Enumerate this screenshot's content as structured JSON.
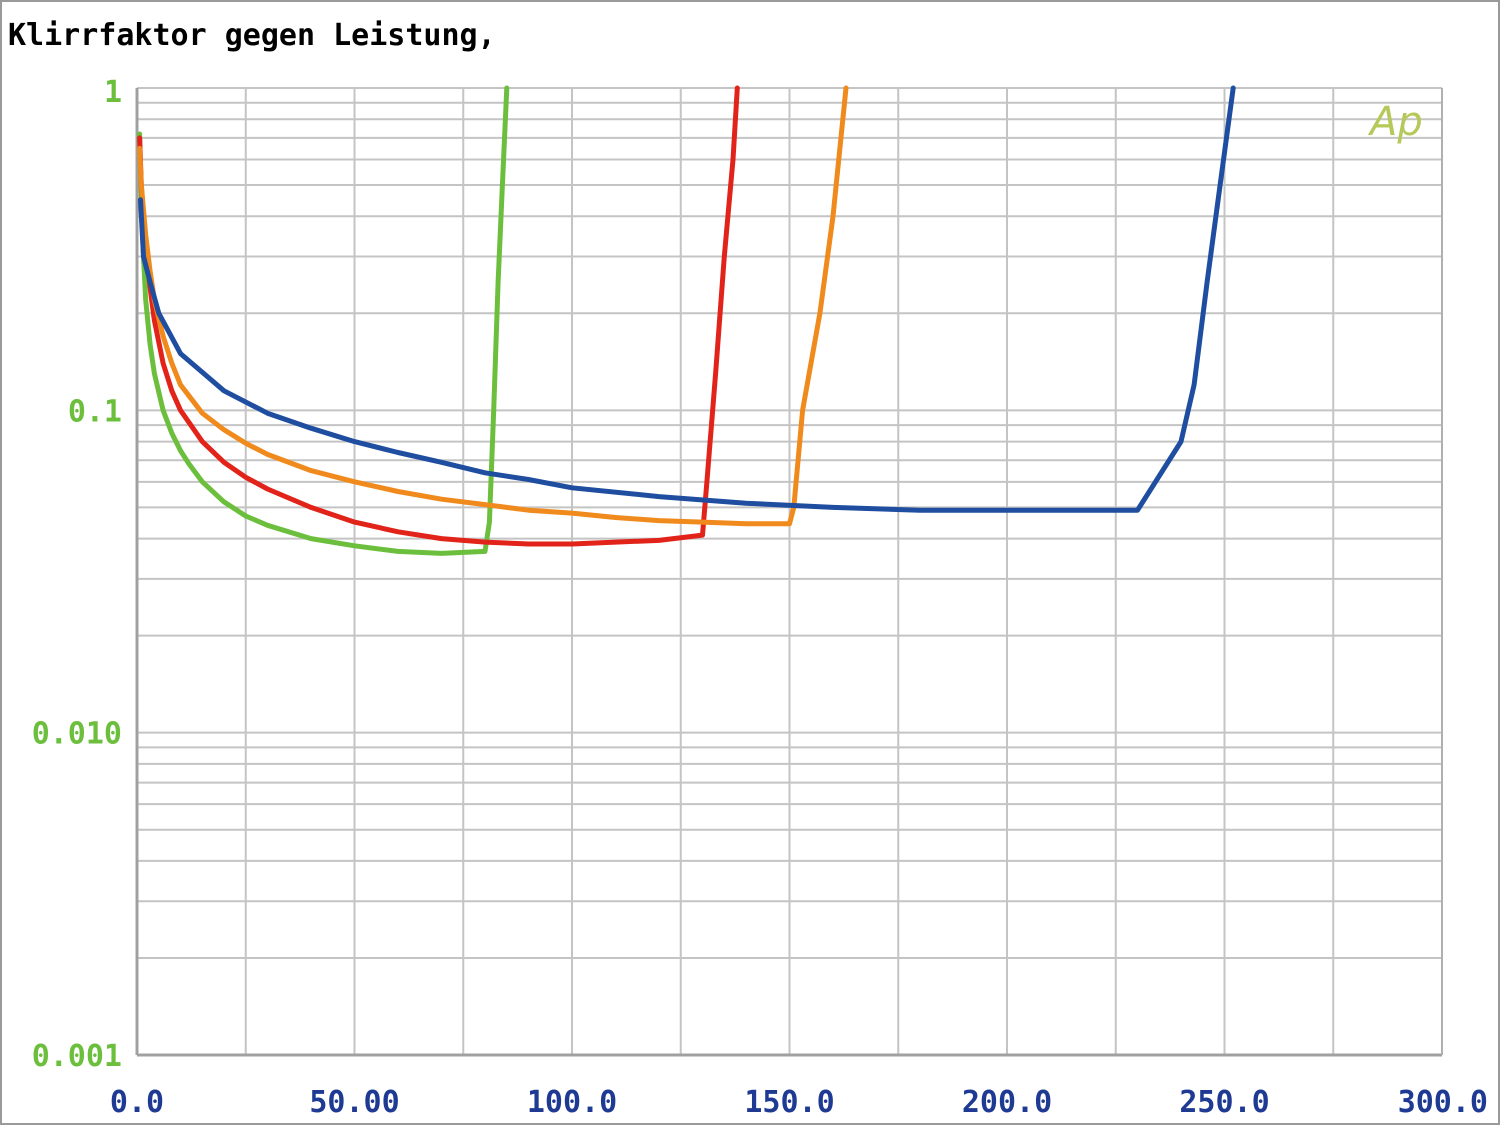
{
  "chart_data": {
    "type": "line",
    "title": "Klirrfaktor gegen Leistung,",
    "xlabel": "",
    "ylabel": "",
    "xlim": [
      0,
      300
    ],
    "ylim": [
      0.001,
      1
    ],
    "yscale": "log",
    "grid": true,
    "x_ticks": [
      "0.0",
      "50.00",
      "100.0",
      "150.0",
      "200.0",
      "250.0",
      "300.0"
    ],
    "x_tick_values": [
      0,
      50,
      100,
      150,
      200,
      250,
      300
    ],
    "y_ticks": [
      "1",
      "0.1",
      "0.010",
      "0.001"
    ],
    "y_tick_values": [
      1,
      0.1,
      0.01,
      0.001
    ],
    "watermark": "Ap",
    "colors": {
      "axis_text": "#1f3a93",
      "y_tick": "#6cbf3c",
      "grid": "#c4c4c4",
      "watermark": "#b5c85a"
    },
    "series": [
      {
        "color": "#6cbf3c",
        "points": [
          [
            0.6,
            0.72
          ],
          [
            1,
            0.45
          ],
          [
            1.5,
            0.3
          ],
          [
            2,
            0.22
          ],
          [
            3,
            0.16
          ],
          [
            4,
            0.13
          ],
          [
            6,
            0.1
          ],
          [
            8,
            0.085
          ],
          [
            10,
            0.075
          ],
          [
            12,
            0.068
          ],
          [
            15,
            0.06
          ],
          [
            20,
            0.052
          ],
          [
            25,
            0.047
          ],
          [
            30,
            0.044
          ],
          [
            40,
            0.04
          ],
          [
            50,
            0.038
          ],
          [
            60,
            0.0365
          ],
          [
            70,
            0.036
          ],
          [
            80,
            0.0365
          ],
          [
            81,
            0.045
          ],
          [
            82,
            0.1
          ],
          [
            83,
            0.25
          ],
          [
            84,
            0.5
          ],
          [
            85,
            1.0
          ]
        ]
      },
      {
        "color": "#e2231a",
        "points": [
          [
            0.6,
            0.7
          ],
          [
            1,
            0.5
          ],
          [
            2,
            0.32
          ],
          [
            3,
            0.24
          ],
          [
            4,
            0.19
          ],
          [
            6,
            0.14
          ],
          [
            8,
            0.115
          ],
          [
            10,
            0.1
          ],
          [
            15,
            0.08
          ],
          [
            20,
            0.069
          ],
          [
            25,
            0.062
          ],
          [
            30,
            0.057
          ],
          [
            40,
            0.05
          ],
          [
            50,
            0.045
          ],
          [
            60,
            0.042
          ],
          [
            70,
            0.04
          ],
          [
            80,
            0.039
          ],
          [
            90,
            0.0385
          ],
          [
            100,
            0.0385
          ],
          [
            110,
            0.039
          ],
          [
            120,
            0.0395
          ],
          [
            130,
            0.041
          ],
          [
            131,
            0.06
          ],
          [
            133,
            0.13
          ],
          [
            135,
            0.3
          ],
          [
            137,
            0.6
          ],
          [
            138,
            1.0
          ]
        ]
      },
      {
        "color": "#f08a1c",
        "points": [
          [
            0.6,
            0.65
          ],
          [
            1,
            0.5
          ],
          [
            2,
            0.35
          ],
          [
            3,
            0.27
          ],
          [
            4,
            0.22
          ],
          [
            6,
            0.17
          ],
          [
            8,
            0.14
          ],
          [
            10,
            0.12
          ],
          [
            15,
            0.098
          ],
          [
            20,
            0.087
          ],
          [
            25,
            0.079
          ],
          [
            30,
            0.073
          ],
          [
            40,
            0.065
          ],
          [
            50,
            0.06
          ],
          [
            60,
            0.056
          ],
          [
            70,
            0.053
          ],
          [
            80,
            0.051
          ],
          [
            90,
            0.049
          ],
          [
            100,
            0.048
          ],
          [
            110,
            0.0465
          ],
          [
            120,
            0.0455
          ],
          [
            130,
            0.045
          ],
          [
            140,
            0.0445
          ],
          [
            150,
            0.0445
          ],
          [
            151,
            0.05
          ],
          [
            153,
            0.1
          ],
          [
            157,
            0.2
          ],
          [
            160,
            0.4
          ],
          [
            163,
            1.0
          ]
        ]
      },
      {
        "color": "#1f4da0",
        "points": [
          [
            0.8,
            0.45
          ],
          [
            1.5,
            0.3
          ],
          [
            3,
            0.25
          ],
          [
            5,
            0.2
          ],
          [
            10,
            0.15
          ],
          [
            20,
            0.115
          ],
          [
            30,
            0.098
          ],
          [
            40,
            0.088
          ],
          [
            50,
            0.08
          ],
          [
            60,
            0.074
          ],
          [
            70,
            0.069
          ],
          [
            80,
            0.064
          ],
          [
            90,
            0.061
          ],
          [
            100,
            0.0575
          ],
          [
            120,
            0.054
          ],
          [
            140,
            0.0515
          ],
          [
            160,
            0.05
          ],
          [
            180,
            0.049
          ],
          [
            200,
            0.049
          ],
          [
            215,
            0.049
          ],
          [
            230,
            0.049
          ],
          [
            240,
            0.08
          ],
          [
            243,
            0.12
          ],
          [
            246,
            0.25
          ],
          [
            249,
            0.5
          ],
          [
            252,
            1.0
          ]
        ]
      }
    ]
  }
}
